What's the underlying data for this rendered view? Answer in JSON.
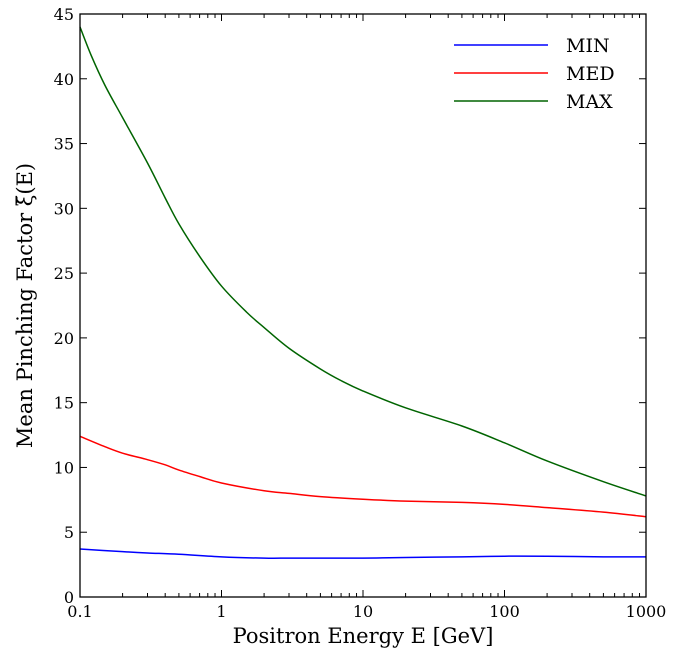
{
  "chart_data": {
    "type": "line",
    "xlabel": "Positron Energy E [GeV]",
    "ylabel": "Mean Pinching Factor ξ̄(E)",
    "xscale": "log",
    "xlim": [
      0.1,
      1000
    ],
    "ylim": [
      0,
      45
    ],
    "xticks": [
      0.1,
      1,
      10,
      100,
      1000
    ],
    "xtick_labels": [
      "0.1",
      "1",
      "10",
      "100",
      "1000"
    ],
    "yticks": [
      0,
      5,
      10,
      15,
      20,
      25,
      30,
      35,
      40,
      45
    ],
    "ytick_labels": [
      "0",
      "5",
      "10",
      "15",
      "20",
      "25",
      "30",
      "35",
      "40",
      "45"
    ],
    "grid": false,
    "legend_position": "top-right",
    "series": [
      {
        "name": "MIN",
        "color": "#0000ff",
        "x": [
          0.1,
          0.2,
          0.3,
          0.5,
          1,
          2,
          3,
          5,
          10,
          20,
          50,
          100,
          200,
          500,
          1000
        ],
        "y": [
          3.7,
          3.5,
          3.4,
          3.3,
          3.1,
          3.0,
          3.0,
          3.0,
          3.0,
          3.05,
          3.1,
          3.15,
          3.15,
          3.1,
          3.1
        ]
      },
      {
        "name": "MED",
        "color": "#ff0000",
        "x": [
          0.1,
          0.15,
          0.2,
          0.3,
          0.4,
          0.5,
          0.7,
          1,
          2,
          3,
          5,
          10,
          20,
          50,
          100,
          200,
          500,
          1000
        ],
        "y": [
          12.4,
          11.6,
          11.1,
          10.6,
          10.2,
          9.8,
          9.3,
          8.8,
          8.2,
          8.0,
          7.75,
          7.55,
          7.4,
          7.3,
          7.15,
          6.9,
          6.55,
          6.2
        ]
      },
      {
        "name": "MAX",
        "color": "#006400",
        "x": [
          0.1,
          0.12,
          0.15,
          0.2,
          0.3,
          0.4,
          0.5,
          0.7,
          1,
          1.5,
          2,
          3,
          5,
          7,
          10,
          20,
          50,
          100,
          200,
          500,
          1000
        ],
        "y": [
          44.0,
          41.8,
          39.5,
          37.0,
          33.5,
          30.8,
          28.8,
          26.3,
          24.0,
          22.0,
          20.8,
          19.2,
          17.6,
          16.7,
          15.9,
          14.6,
          13.2,
          11.9,
          10.5,
          8.9,
          7.8
        ]
      }
    ]
  }
}
